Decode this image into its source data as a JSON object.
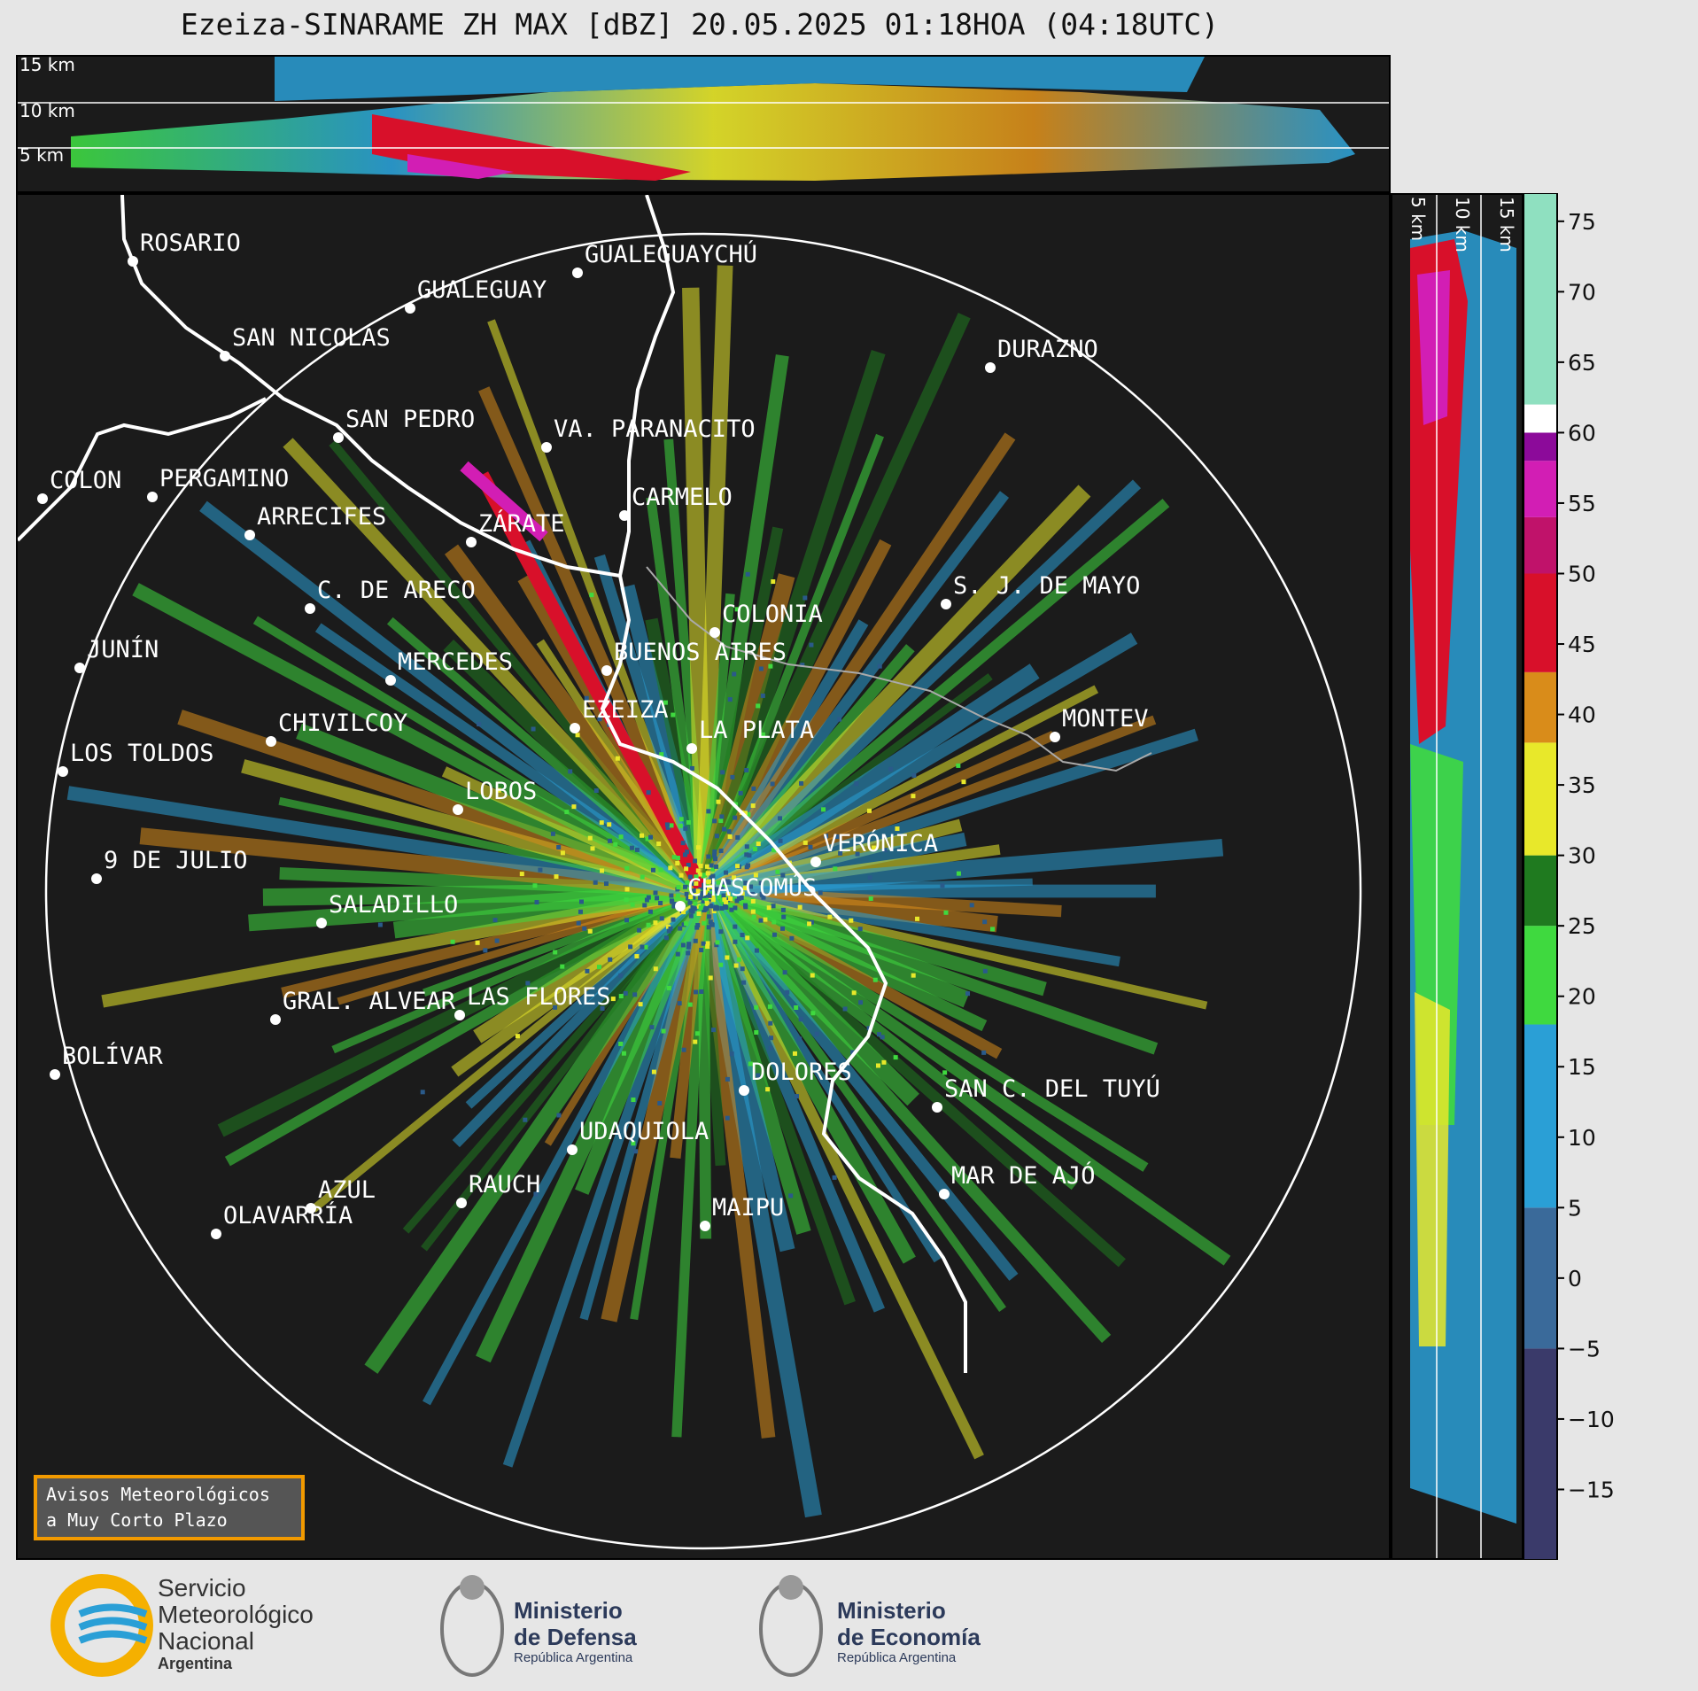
{
  "title": "Ezeiza-SINARAME ZH MAX [dBZ] 20.05.2025 01:18HOA (04:18UTC)",
  "top_panel": {
    "km_labels": [
      "15 km",
      "10 km",
      "5 km"
    ]
  },
  "side_panel": {
    "km_labels": [
      "5 km",
      "10 km",
      "15 km"
    ]
  },
  "colorbar": {
    "unit": "dBZ",
    "ticks": [
      "75",
      "70",
      "65",
      "60",
      "55",
      "50",
      "45",
      "40",
      "35",
      "30",
      "25",
      "20",
      "15",
      "10",
      "5",
      "0",
      "−5",
      "−10",
      "−15"
    ],
    "range": [
      -20,
      77
    ],
    "colors": {
      "low": "#3a3a6a",
      "blue": "#2a9fd6",
      "green": "#3fd93f",
      "dkgreen": "#1f7a1f",
      "yellow": "#e8e82a",
      "orange": "#d98c1a",
      "red": "#d8102a",
      "magenta": "#d21eb4",
      "purple": "#8c0a9a",
      "white": "#ffffff",
      "mint": "#8fe0c0"
    }
  },
  "map": {
    "background": "#1b1b1b",
    "range_ring": "white",
    "cities": [
      {
        "name": "ROSARIO"
      },
      {
        "name": "GUALEGUAYCHÚ"
      },
      {
        "name": "GUALEGUAY"
      },
      {
        "name": "SAN NICOLÁS"
      },
      {
        "name": "DURAZNO"
      },
      {
        "name": "SAN PEDRO"
      },
      {
        "name": "VA. PARANACITO"
      },
      {
        "name": "COLON"
      },
      {
        "name": "PERGAMINO"
      },
      {
        "name": "CARMELO"
      },
      {
        "name": "ARRECIFES"
      },
      {
        "name": "ZÁRATE"
      },
      {
        "name": "S. J. DE MAYO"
      },
      {
        "name": "C. DE ARECO"
      },
      {
        "name": "COLONIA"
      },
      {
        "name": "JUNÍN"
      },
      {
        "name": "BUENOS AIRES"
      },
      {
        "name": "MERCEDES"
      },
      {
        "name": "EZEIZA"
      },
      {
        "name": "MONTEV"
      },
      {
        "name": "CHIVILCOY"
      },
      {
        "name": "LA PLATA"
      },
      {
        "name": "LOS TOLDOS"
      },
      {
        "name": "LOBOS"
      },
      {
        "name": "VERÓNICA"
      },
      {
        "name": "9 DE JULIO"
      },
      {
        "name": "CHASCOMÚS"
      },
      {
        "name": "SALADILLO"
      },
      {
        "name": "GRAL. ALVEAR"
      },
      {
        "name": "LAS FLORES"
      },
      {
        "name": "BOLÍVAR"
      },
      {
        "name": "DOLORES"
      },
      {
        "name": "SAN C. DEL TUYÚ"
      },
      {
        "name": "UDAQUIOLA"
      },
      {
        "name": "MAR DE AJÓ"
      },
      {
        "name": "AZUL"
      },
      {
        "name": "RAUCH"
      },
      {
        "name": "MAIPU"
      },
      {
        "name": "OLAVARRÍA"
      }
    ]
  },
  "aviso": {
    "line1": "Avisos Meteorológicos",
    "line2": "a Muy Corto Plazo"
  },
  "logos": {
    "smn": {
      "line1": "Servicio",
      "line2": "Meteorológico",
      "line3": "Nacional",
      "line4": "Argentina"
    },
    "defensa": {
      "line1": "Ministerio",
      "line2": "de Defensa",
      "line3": "República Argentina"
    },
    "economia": {
      "line1": "Ministerio",
      "line2": "de Economía",
      "line3": "República Argentina"
    }
  }
}
